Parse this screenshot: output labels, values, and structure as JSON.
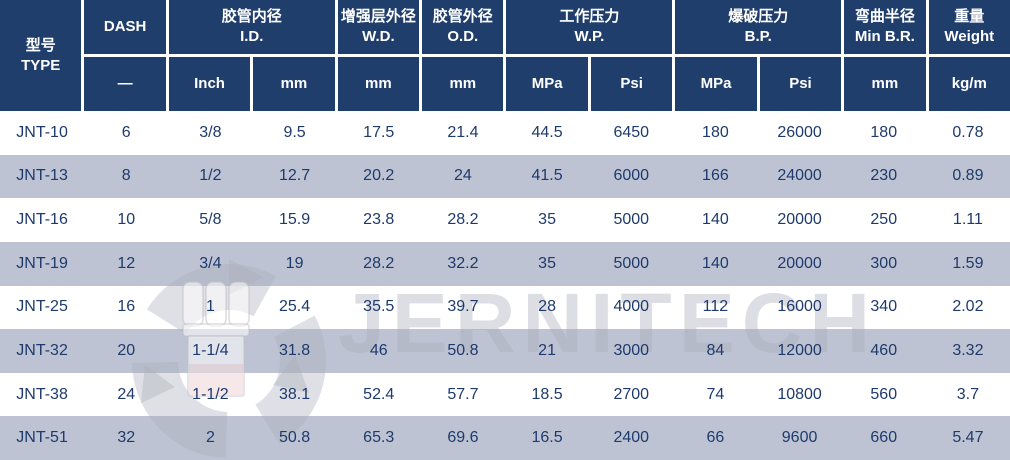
{
  "header": {
    "type_zh": "型号",
    "type_en": "TYPE",
    "dash": "DASH",
    "dash_unit": "—",
    "id_zh": "胶管内径",
    "id_en": "I.D.",
    "id_unit_inch": "Inch",
    "id_unit_mm": "mm",
    "wd_zh": "增强层外径",
    "wd_en": "W.D.",
    "wd_unit": "mm",
    "od_zh": "胶管外径",
    "od_en": "O.D.",
    "od_unit": "mm",
    "wp_zh": "工作压力",
    "wp_en": "W.P.",
    "wp_unit_mpa": "MPa",
    "wp_unit_psi": "Psi",
    "bp_zh": "爆破压力",
    "bp_en": "B.P.",
    "bp_unit_mpa": "MPa",
    "bp_unit_psi": "Psi",
    "br_zh": "弯曲半径",
    "br_en": "Min B.R.",
    "br_unit": "mm",
    "wt_zh": "重量",
    "wt_en": "Weight",
    "wt_unit": "kg/m"
  },
  "rows": [
    [
      "JNT-10",
      "6",
      "3/8",
      "9.5",
      "17.5",
      "21.4",
      "44.5",
      "6450",
      "180",
      "26000",
      "180",
      "0.78"
    ],
    [
      "JNT-13",
      "8",
      "1/2",
      "12.7",
      "20.2",
      "24",
      "41.5",
      "6000",
      "166",
      "24000",
      "230",
      "0.89"
    ],
    [
      "JNT-16",
      "10",
      "5/8",
      "15.9",
      "23.8",
      "28.2",
      "35",
      "5000",
      "140",
      "20000",
      "250",
      "1.11"
    ],
    [
      "JNT-19",
      "12",
      "3/4",
      "19",
      "28.2",
      "32.2",
      "35",
      "5000",
      "140",
      "20000",
      "300",
      "1.59"
    ],
    [
      "JNT-25",
      "16",
      "1",
      "25.4",
      "35.5",
      "39.7",
      "28",
      "4000",
      "112",
      "16000",
      "340",
      "2.02"
    ],
    [
      "JNT-32",
      "20",
      "1-1/4",
      "31.8",
      "46",
      "50.8",
      "21",
      "3000",
      "84",
      "12000",
      "460",
      "3.32"
    ],
    [
      "JNT-38",
      "24",
      "1-1/2",
      "38.1",
      "52.4",
      "57.7",
      "18.5",
      "2700",
      "74",
      "10800",
      "560",
      "3.7"
    ],
    [
      "JNT-51",
      "32",
      "2",
      "50.8",
      "65.3",
      "69.6",
      "16.5",
      "2400",
      "66",
      "9600",
      "660",
      "5.47"
    ]
  ],
  "watermark": {
    "text": "JERNITECH",
    "logo": "swirl-logo",
    "graphic": "hose-fitting-graphic"
  },
  "colors": {
    "header_bg": "#203e6c",
    "stripe_bg": "#bdc3d2",
    "cell_text": "#1e3a6d",
    "header_text": "#ffffff"
  }
}
